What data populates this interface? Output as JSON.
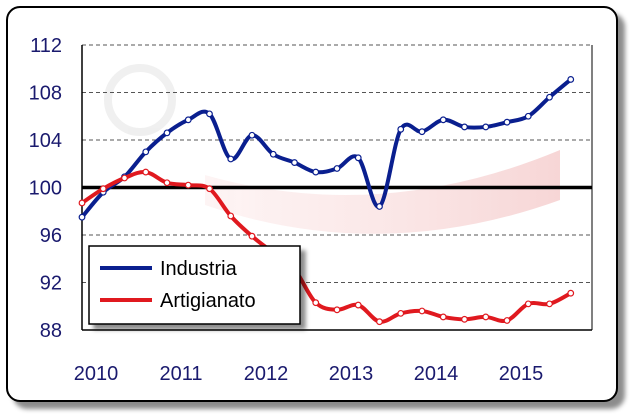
{
  "chart_data": {
    "type": "line",
    "title": "",
    "xlabel": "",
    "ylabel": "",
    "ylim": [
      88,
      112
    ],
    "yticks": [
      88,
      92,
      96,
      100,
      104,
      108,
      112
    ],
    "xlim": [
      2010,
      2016
    ],
    "xticks": [
      "2010",
      "2011",
      "2012",
      "2013",
      "2014",
      "2015"
    ],
    "reference_line": 100,
    "grid": "horizontal dashed",
    "legend_position": "bottom-left",
    "x": [
      2010.0,
      2010.25,
      2010.5,
      2010.75,
      2011.0,
      2011.25,
      2011.5,
      2011.75,
      2012.0,
      2012.25,
      2012.5,
      2012.75,
      2013.0,
      2013.25,
      2013.5,
      2013.75,
      2014.0,
      2014.25,
      2014.5,
      2014.75,
      2015.0,
      2015.25,
      2015.5,
      2015.75
    ],
    "series": [
      {
        "name": "Industria",
        "color": "#0a1f8f",
        "values": [
          97.5,
          99.6,
          100.9,
          103.0,
          104.6,
          105.7,
          106.2,
          102.4,
          104.4,
          102.8,
          102.1,
          101.3,
          101.6,
          102.5,
          98.4,
          104.9,
          104.7,
          105.7,
          105.1,
          105.1,
          105.5,
          106.0,
          107.6,
          109.1
        ]
      },
      {
        "name": "Artigianato",
        "color": "#e0191f",
        "values": [
          98.7,
          99.9,
          100.8,
          101.3,
          100.4,
          100.2,
          99.9,
          97.6,
          95.9,
          94.5,
          93.1,
          90.3,
          89.7,
          90.1,
          88.7,
          89.4,
          89.6,
          89.1,
          88.9,
          89.1,
          88.8,
          90.2,
          90.2,
          91.1
        ]
      }
    ]
  }
}
